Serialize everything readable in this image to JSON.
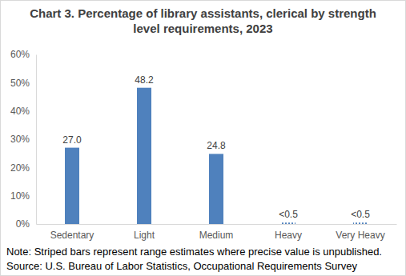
{
  "chart_data": {
    "type": "bar",
    "title": "Chart 3. Percentage of library assistants, clerical by strength level requirements, 2023",
    "categories": [
      "Sedentary",
      "Light",
      "Medium",
      "Heavy",
      "Very Heavy"
    ],
    "values": [
      27.0,
      48.2,
      24.8,
      0.5,
      0.5
    ],
    "value_labels": [
      "27.0",
      "48.2",
      "24.8",
      "<0.5",
      "<0.5"
    ],
    "color": "#4f81bd",
    "ylim": [
      0,
      60
    ],
    "yticks": [
      {
        "value": 0,
        "label": "0%"
      },
      {
        "value": 10,
        "label": "10%"
      },
      {
        "value": 20,
        "label": "20%"
      },
      {
        "value": 30,
        "label": "30%"
      },
      {
        "value": 40,
        "label": "40%"
      },
      {
        "value": 50,
        "label": "50%"
      },
      {
        "value": 60,
        "label": "60%"
      }
    ],
    "grid": false,
    "data_labels": true,
    "note": "Note: Striped bars represent range estimates where precise value is unpublished.",
    "source": "Source: U.S. Bureau of Labor Statistics, Occupational Requirements Survey"
  }
}
